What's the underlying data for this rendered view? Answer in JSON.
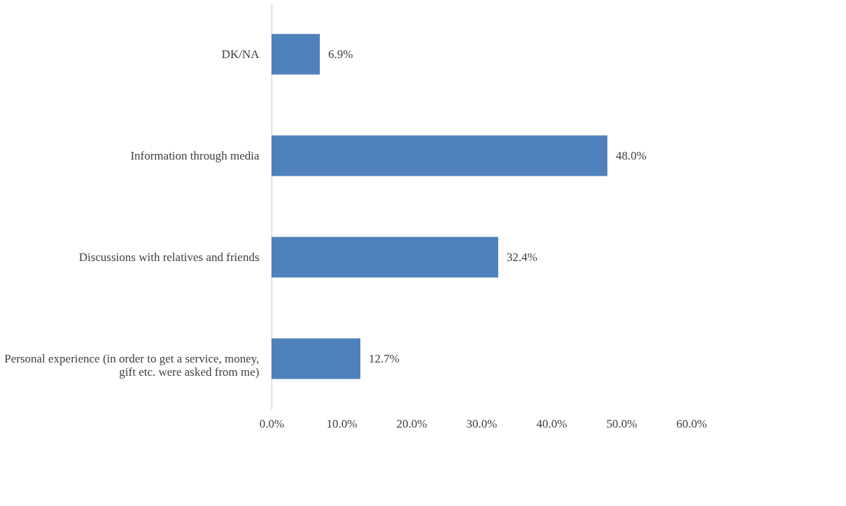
{
  "chart_data": {
    "type": "bar",
    "orientation": "horizontal",
    "categories": [
      "DK/NA",
      "Information through media",
      "Discussions with relatives and friends",
      "Personal experience (in order to get a service, money, gift etc. were asked from me)"
    ],
    "values": [
      6.9,
      48.0,
      32.4,
      12.7
    ],
    "value_labels": [
      "6.9%",
      "48.0%",
      "32.4%",
      "12.7%"
    ],
    "color": "#4f81bd",
    "xlim": [
      0,
      60
    ],
    "xticks": [
      {
        "value": 0,
        "label": "0.0%"
      },
      {
        "value": 10,
        "label": "10.0%"
      },
      {
        "value": 20,
        "label": "20.0%"
      },
      {
        "value": 30,
        "label": "30.0%"
      },
      {
        "value": 40,
        "label": "40.0%"
      },
      {
        "value": 50,
        "label": "50.0%"
      },
      {
        "value": 60,
        "label": "60.0%"
      }
    ],
    "grid": false
  }
}
